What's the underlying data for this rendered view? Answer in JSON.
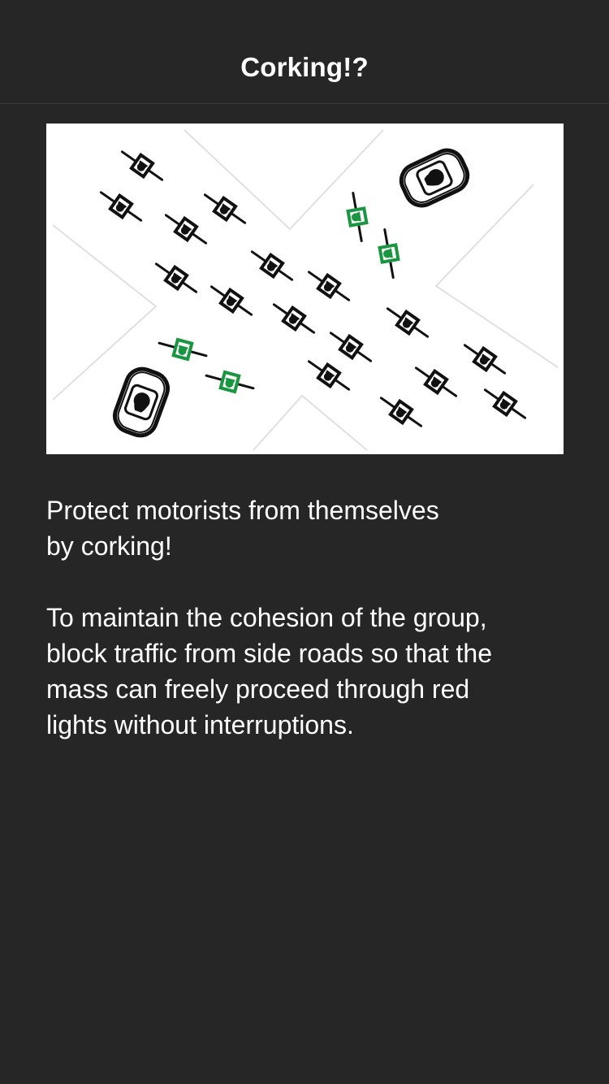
{
  "header": {
    "title": "Corking!?"
  },
  "illustration": {
    "icon": "corking-illustration",
    "colors": {
      "background": "#ffffff",
      "road_lines": "#dddddd",
      "cyclist": "#111111",
      "corker": "#1a9641"
    }
  },
  "content": {
    "paragraphs": [
      {
        "lines": [
          "Protect motorists from themselves",
          "by corking!"
        ]
      },
      {
        "lines": [
          "To maintain the cohesion of the group,",
          "block traffic from side roads so that the",
          "mass can freely proceed through red",
          "lights without interruptions."
        ]
      }
    ]
  },
  "colors": {
    "background": "#262626",
    "text": "#ffffff",
    "separator": "#3a3a3a"
  }
}
